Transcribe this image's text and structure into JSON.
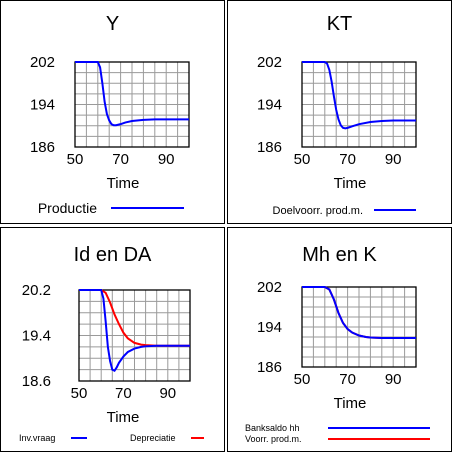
{
  "chart_data": [
    {
      "type": "line",
      "title": "Y",
      "xlabel": "Time",
      "xlim": [
        50,
        100
      ],
      "ylim": [
        186,
        202
      ],
      "xticks": [
        50,
        70,
        90
      ],
      "yticks": [
        202,
        194,
        186
      ],
      "ytick_labels": [
        "202",
        "194",
        "186"
      ],
      "grid": true,
      "series": [
        {
          "name": "Productie",
          "color": "#0000ff",
          "x": [
            50,
            60,
            61,
            62,
            63,
            64,
            65,
            66,
            67,
            68,
            70,
            72,
            75,
            80,
            85,
            90,
            100
          ],
          "y": [
            202,
            202,
            201,
            198,
            194.5,
            192.2,
            191,
            190.3,
            190.1,
            190.1,
            190.3,
            190.6,
            190.9,
            191.1,
            191.2,
            191.2,
            191.2
          ]
        }
      ]
    },
    {
      "type": "line",
      "title": "KT",
      "xlabel": "Time",
      "xlim": [
        50,
        100
      ],
      "ylim": [
        186,
        202
      ],
      "xticks": [
        50,
        70,
        90
      ],
      "yticks": [
        202,
        194,
        186
      ],
      "ytick_labels": [
        "202",
        "194",
        "186"
      ],
      "grid": true,
      "series": [
        {
          "name": "Doelvoorr. prod.m.",
          "color": "#0000ff",
          "x": [
            50,
            60,
            61,
            62,
            63,
            64,
            65,
            66,
            67,
            68,
            69,
            70,
            72,
            75,
            80,
            85,
            90,
            100
          ],
          "y": [
            202,
            202,
            201.7,
            200.5,
            198.3,
            195.5,
            193,
            191.2,
            190.1,
            189.6,
            189.5,
            189.6,
            189.9,
            190.3,
            190.7,
            190.9,
            191,
            191
          ]
        }
      ]
    },
    {
      "type": "line",
      "title": "Id en DA",
      "xlabel": "Time",
      "xlim": [
        50,
        100
      ],
      "ylim": [
        18.6,
        20.2
      ],
      "xticks": [
        50,
        70,
        90
      ],
      "yticks": [
        20.2,
        19.4,
        18.6
      ],
      "ytick_labels": [
        "20.2",
        "19.4",
        "18.6"
      ],
      "grid": true,
      "series": [
        {
          "name": "Inv.vraag",
          "color": "#0000ff",
          "x": [
            50,
            60,
            61,
            62,
            63,
            64,
            65,
            66,
            67,
            68,
            70,
            72,
            75,
            78,
            80,
            85,
            90,
            100
          ],
          "y": [
            20.2,
            20.2,
            20.05,
            19.65,
            19.2,
            18.95,
            18.8,
            18.78,
            18.84,
            18.92,
            19.03,
            19.11,
            19.17,
            19.2,
            19.21,
            19.22,
            19.22,
            19.22
          ]
        },
        {
          "name": "Depreciatie",
          "color": "#ff0000",
          "x": [
            50,
            60,
            62,
            64,
            66,
            68,
            70,
            72,
            75,
            78,
            80,
            85,
            90,
            100
          ],
          "y": [
            20.2,
            20.2,
            20.15,
            19.98,
            19.77,
            19.6,
            19.45,
            19.35,
            19.27,
            19.24,
            19.23,
            19.22,
            19.22,
            19.22
          ]
        }
      ]
    },
    {
      "type": "line",
      "title": "Mh en K",
      "xlabel": "Time",
      "xlim": [
        50,
        100
      ],
      "ylim": [
        186,
        202
      ],
      "xticks": [
        50,
        70,
        90
      ],
      "yticks": [
        202,
        194,
        186
      ],
      "ytick_labels": [
        "202",
        "194",
        "186"
      ],
      "grid": true,
      "series": [
        {
          "name": "Banksaldo hh",
          "color": "#0000ff",
          "x": [
            50,
            60,
            62,
            64,
            66,
            68,
            70,
            72,
            75,
            78,
            80,
            85,
            90,
            100
          ],
          "y": [
            202,
            202,
            201.5,
            199.5,
            196.8,
            194.8,
            193.6,
            192.9,
            192.3,
            192,
            191.9,
            191.8,
            191.8,
            191.8
          ]
        },
        {
          "name": "Voorr. prod.m.",
          "color": "#ff0000",
          "x": [
            50,
            60,
            62,
            64,
            66,
            68,
            70,
            72,
            75,
            78,
            80,
            85,
            90,
            100
          ],
          "y": [
            202,
            202,
            201.5,
            199.5,
            196.8,
            194.8,
            193.6,
            192.9,
            192.3,
            192,
            191.9,
            191.8,
            191.8,
            191.8
          ]
        }
      ]
    }
  ]
}
